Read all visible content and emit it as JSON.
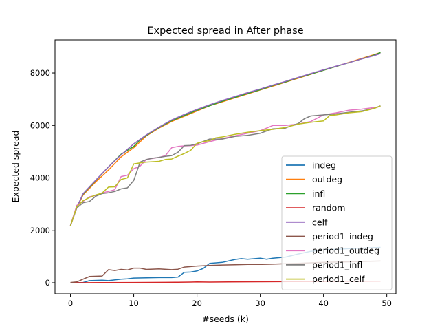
{
  "chart_data": {
    "type": "line",
    "title": "Expected spread in After phase",
    "xlabel": "#seeds (k)",
    "ylabel": "Expected spread",
    "xlim": [
      -2.45,
      51.45
    ],
    "ylim": [
      -420,
      9260
    ],
    "xticks": [
      0,
      10,
      20,
      30,
      40,
      50
    ],
    "yticks": [
      0,
      2000,
      4000,
      6000,
      8000
    ],
    "grid": false,
    "legend_position": "lower right",
    "series": [
      {
        "name": "indeg",
        "color": "#1f77b4",
        "x": [
          0,
          2,
          3,
          5,
          6,
          8,
          9,
          10,
          12,
          14,
          16,
          17,
          18,
          19,
          20,
          21,
          22,
          24,
          26,
          27,
          28,
          30,
          31,
          32,
          34,
          36,
          38,
          40,
          44,
          49
        ],
        "y": [
          5,
          10,
          80,
          100,
          80,
          140,
          150,
          180,
          190,
          200,
          200,
          220,
          400,
          410,
          450,
          550,
          740,
          780,
          890,
          920,
          900,
          940,
          900,
          940,
          980,
          1100,
          1200,
          1250,
          1300,
          1350
        ]
      },
      {
        "name": "outdeg",
        "color": "#ff7f0e",
        "x": [
          0,
          1,
          2,
          4,
          6,
          8,
          10,
          12,
          14,
          16,
          18,
          20,
          22,
          24,
          26,
          28,
          30,
          32,
          34,
          36,
          38,
          40,
          42,
          44,
          46,
          48,
          49
        ],
        "y": [
          2180,
          2850,
          3350,
          3850,
          4300,
          4800,
          5150,
          5600,
          5900,
          6150,
          6350,
          6550,
          6750,
          6900,
          7050,
          7200,
          7350,
          7500,
          7650,
          7800,
          7950,
          8100,
          8250,
          8400,
          8550,
          8700,
          8780
        ]
      },
      {
        "name": "infl",
        "color": "#2ca02c",
        "x": [
          0,
          1,
          2,
          4,
          6,
          8,
          10,
          11,
          12,
          14,
          16,
          18,
          20,
          22,
          24,
          26,
          28,
          30,
          32,
          34,
          36,
          38,
          40,
          42,
          44,
          46,
          48,
          49
        ],
        "y": [
          2180,
          2880,
          3380,
          3900,
          4420,
          4900,
          5200,
          5450,
          5620,
          5920,
          6180,
          6380,
          6580,
          6750,
          6920,
          7070,
          7220,
          7360,
          7520,
          7660,
          7820,
          7960,
          8100,
          8250,
          8390,
          8530,
          8680,
          8780
        ]
      },
      {
        "name": "random",
        "color": "#d62728",
        "x": [
          0,
          5,
          10,
          15,
          17,
          19,
          20,
          22,
          25,
          30,
          35,
          40,
          45,
          49
        ],
        "y": [
          0,
          5,
          10,
          15,
          20,
          25,
          30,
          25,
          30,
          40,
          45,
          50,
          55,
          60
        ]
      },
      {
        "name": "celf",
        "color": "#9467bd",
        "x": [
          0,
          1,
          2,
          4,
          6,
          8,
          10,
          12,
          14,
          16,
          18,
          20,
          22,
          24,
          26,
          28,
          30,
          32,
          34,
          36,
          38,
          40,
          42,
          44,
          46,
          48,
          49
        ],
        "y": [
          2160,
          2870,
          3400,
          3920,
          4420,
          4880,
          5300,
          5640,
          5940,
          6210,
          6420,
          6610,
          6790,
          6950,
          7100,
          7250,
          7390,
          7540,
          7680,
          7830,
          7980,
          8120,
          8260,
          8390,
          8530,
          8660,
          8740
        ]
      },
      {
        "name": "period1_indeg",
        "color": "#8c564b",
        "x": [
          0,
          1,
          2,
          3,
          5,
          6,
          7,
          8,
          9,
          10,
          11,
          12,
          14,
          16,
          17,
          18,
          20,
          22,
          24,
          26,
          28,
          30,
          32,
          34,
          36,
          38,
          40,
          44,
          49
        ],
        "y": [
          10,
          30,
          140,
          240,
          260,
          500,
          470,
          510,
          490,
          560,
          560,
          510,
          530,
          500,
          520,
          600,
          640,
          660,
          680,
          690,
          700,
          700,
          710,
          730,
          740,
          760,
          780,
          800,
          830
        ]
      },
      {
        "name": "period1_outdeg",
        "color": "#e377c2",
        "x": [
          0,
          1,
          2,
          3,
          4,
          5,
          6,
          7,
          8,
          9,
          10,
          11,
          12,
          14,
          15,
          16,
          17,
          18,
          19,
          20,
          22,
          24,
          26,
          28,
          30,
          32,
          34,
          36,
          38,
          40,
          42,
          44,
          46,
          48,
          49
        ],
        "y": [
          2180,
          2950,
          3100,
          3280,
          3330,
          3430,
          3480,
          3550,
          4050,
          4100,
          4350,
          4450,
          4700,
          4780,
          4850,
          5150,
          5200,
          5220,
          5230,
          5250,
          5380,
          5500,
          5600,
          5700,
          5800,
          6000,
          6000,
          6050,
          6150,
          6400,
          6480,
          6580,
          6620,
          6680,
          6720
        ]
      },
      {
        "name": "period1_infl",
        "color": "#7f7f7f",
        "x": [
          0,
          1,
          2,
          3,
          4,
          5,
          6,
          7,
          8,
          9,
          10,
          11,
          12,
          13,
          14,
          15,
          16,
          17,
          18,
          19,
          20,
          22,
          24,
          26,
          28,
          30,
          32,
          34,
          35,
          36,
          37,
          38,
          40,
          42,
          44,
          46,
          48,
          49
        ],
        "y": [
          2180,
          2850,
          3050,
          3100,
          3300,
          3400,
          3430,
          3480,
          3580,
          3620,
          3900,
          4600,
          4700,
          4750,
          4780,
          4820,
          4850,
          4980,
          5230,
          5240,
          5300,
          5480,
          5480,
          5580,
          5620,
          5700,
          5870,
          5900,
          6000,
          6070,
          6260,
          6360,
          6400,
          6440,
          6500,
          6550,
          6650,
          6750
        ]
      },
      {
        "name": "period1_celf",
        "color": "#bcbd22",
        "x": [
          0,
          1,
          2,
          3,
          4,
          5,
          6,
          7,
          8,
          9,
          10,
          11,
          12,
          14,
          15,
          16,
          17,
          18,
          19,
          20,
          21,
          22,
          23,
          24,
          26,
          28,
          30,
          32,
          34,
          36,
          38,
          40,
          41,
          42,
          44,
          46,
          48,
          49
        ],
        "y": [
          2160,
          2900,
          3130,
          3250,
          3350,
          3420,
          3650,
          3660,
          3940,
          4000,
          4530,
          4570,
          4600,
          4630,
          4700,
          4720,
          4830,
          4930,
          5050,
          5320,
          5380,
          5420,
          5530,
          5560,
          5660,
          5740,
          5800,
          5850,
          5920,
          6050,
          6120,
          6170,
          6380,
          6400,
          6480,
          6520,
          6650,
          6740
        ]
      }
    ]
  }
}
